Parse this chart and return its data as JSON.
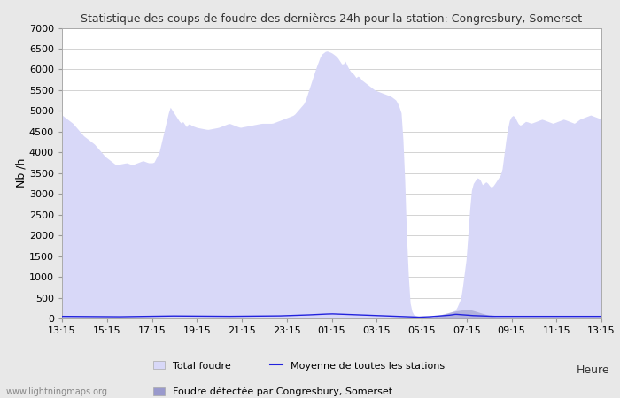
{
  "title": "Statistique des coups de foudre des dernières 24h pour la station: Congresbury, Somerset",
  "xlabel": "Heure",
  "ylabel": "Nb /h",
  "xlabels": [
    "13:15",
    "15:15",
    "17:15",
    "19:15",
    "21:15",
    "23:15",
    "01:15",
    "03:15",
    "05:15",
    "07:15",
    "09:15",
    "11:15",
    "13:15"
  ],
  "ylim": [
    0,
    7000
  ],
  "yticks": [
    0,
    500,
    1000,
    1500,
    2000,
    2500,
    3000,
    3500,
    4000,
    4500,
    5000,
    5500,
    6000,
    6500,
    7000
  ],
  "fill_color_total": "#d8d8f8",
  "fill_color_local": "#9999cc",
  "line_color_mean": "#2222dd",
  "bg_color": "#e8e8e8",
  "plot_bg": "#ffffff",
  "watermark": "www.lightningmaps.org",
  "legend_labels": [
    "Total foudre",
    "Moyenne de toutes les stations",
    "Foudre détectée par Congresbury, Somerset"
  ],
  "waypoints_total": [
    [
      0.0,
      4900
    ],
    [
      0.02,
      4700
    ],
    [
      0.04,
      4400
    ],
    [
      0.06,
      4200
    ],
    [
      0.08,
      3900
    ],
    [
      0.1,
      3700
    ],
    [
      0.12,
      3750
    ],
    [
      0.13,
      3700
    ],
    [
      0.14,
      3750
    ],
    [
      0.15,
      3800
    ],
    [
      0.16,
      3750
    ],
    [
      0.17,
      3750
    ],
    [
      0.18,
      4000
    ],
    [
      0.2,
      5100
    ],
    [
      0.21,
      4900
    ],
    [
      0.215,
      4800
    ],
    [
      0.22,
      4700
    ],
    [
      0.225,
      4750
    ],
    [
      0.23,
      4600
    ],
    [
      0.235,
      4700
    ],
    [
      0.24,
      4650
    ],
    [
      0.25,
      4600
    ],
    [
      0.27,
      4550
    ],
    [
      0.29,
      4600
    ],
    [
      0.31,
      4700
    ],
    [
      0.33,
      4600
    ],
    [
      0.35,
      4650
    ],
    [
      0.37,
      4700
    ],
    [
      0.39,
      4700
    ],
    [
      0.41,
      4800
    ],
    [
      0.43,
      4900
    ],
    [
      0.45,
      5200
    ],
    [
      0.46,
      5600
    ],
    [
      0.47,
      6000
    ],
    [
      0.48,
      6350
    ],
    [
      0.49,
      6450
    ],
    [
      0.5,
      6400
    ],
    [
      0.51,
      6300
    ],
    [
      0.52,
      6100
    ],
    [
      0.525,
      6200
    ],
    [
      0.53,
      6050
    ],
    [
      0.535,
      5950
    ],
    [
      0.54,
      5900
    ],
    [
      0.545,
      5800
    ],
    [
      0.55,
      5850
    ],
    [
      0.555,
      5750
    ],
    [
      0.56,
      5700
    ],
    [
      0.565,
      5650
    ],
    [
      0.57,
      5600
    ],
    [
      0.575,
      5550
    ],
    [
      0.58,
      5500
    ],
    [
      0.59,
      5450
    ],
    [
      0.6,
      5400
    ],
    [
      0.61,
      5350
    ],
    [
      0.615,
      5300
    ],
    [
      0.62,
      5250
    ],
    [
      0.625,
      5100
    ],
    [
      0.63,
      4900
    ],
    [
      0.635,
      3500
    ],
    [
      0.64,
      1500
    ],
    [
      0.645,
      400
    ],
    [
      0.65,
      100
    ],
    [
      0.66,
      50
    ],
    [
      0.67,
      30
    ],
    [
      0.675,
      40
    ],
    [
      0.68,
      60
    ],
    [
      0.685,
      50
    ],
    [
      0.69,
      40
    ],
    [
      0.695,
      50
    ],
    [
      0.7,
      60
    ],
    [
      0.705,
      80
    ],
    [
      0.71,
      100
    ],
    [
      0.715,
      120
    ],
    [
      0.72,
      150
    ],
    [
      0.73,
      200
    ],
    [
      0.74,
      500
    ],
    [
      0.75,
      1500
    ],
    [
      0.755,
      2500
    ],
    [
      0.76,
      3200
    ],
    [
      0.765,
      3300
    ],
    [
      0.77,
      3400
    ],
    [
      0.775,
      3350
    ],
    [
      0.78,
      3200
    ],
    [
      0.785,
      3300
    ],
    [
      0.79,
      3250
    ],
    [
      0.795,
      3150
    ],
    [
      0.8,
      3200
    ],
    [
      0.81,
      3400
    ],
    [
      0.815,
      3500
    ],
    [
      0.82,
      4000
    ],
    [
      0.825,
      4500
    ],
    [
      0.83,
      4800
    ],
    [
      0.835,
      4900
    ],
    [
      0.84,
      4850
    ],
    [
      0.845,
      4700
    ],
    [
      0.85,
      4650
    ],
    [
      0.855,
      4700
    ],
    [
      0.86,
      4750
    ],
    [
      0.87,
      4700
    ],
    [
      0.88,
      4750
    ],
    [
      0.89,
      4800
    ],
    [
      0.9,
      4750
    ],
    [
      0.91,
      4700
    ],
    [
      0.92,
      4750
    ],
    [
      0.93,
      4800
    ],
    [
      0.94,
      4750
    ],
    [
      0.95,
      4700
    ],
    [
      0.96,
      4800
    ],
    [
      0.97,
      4850
    ],
    [
      0.98,
      4900
    ],
    [
      0.99,
      4850
    ],
    [
      1.0,
      4800
    ]
  ],
  "waypoints_local": [
    [
      0.0,
      0
    ],
    [
      0.62,
      0
    ],
    [
      0.68,
      0
    ],
    [
      0.7,
      80
    ],
    [
      0.71,
      120
    ],
    [
      0.72,
      150
    ],
    [
      0.73,
      180
    ],
    [
      0.74,
      200
    ],
    [
      0.75,
      220
    ],
    [
      0.76,
      200
    ],
    [
      0.77,
      160
    ],
    [
      0.78,
      120
    ],
    [
      0.79,
      80
    ],
    [
      0.8,
      40
    ],
    [
      0.81,
      20
    ],
    [
      0.82,
      0
    ],
    [
      1.0,
      0
    ]
  ],
  "waypoints_mean": [
    [
      0.0,
      50
    ],
    [
      0.1,
      40
    ],
    [
      0.2,
      60
    ],
    [
      0.3,
      50
    ],
    [
      0.4,
      60
    ],
    [
      0.45,
      80
    ],
    [
      0.48,
      100
    ],
    [
      0.5,
      110
    ],
    [
      0.52,
      100
    ],
    [
      0.54,
      90
    ],
    [
      0.56,
      80
    ],
    [
      0.58,
      70
    ],
    [
      0.6,
      60
    ],
    [
      0.62,
      50
    ],
    [
      0.64,
      40
    ],
    [
      0.66,
      30
    ],
    [
      0.68,
      40
    ],
    [
      0.7,
      60
    ],
    [
      0.72,
      80
    ],
    [
      0.73,
      100
    ],
    [
      0.74,
      90
    ],
    [
      0.75,
      80
    ],
    [
      0.76,
      70
    ],
    [
      0.78,
      60
    ],
    [
      0.8,
      50
    ],
    [
      0.85,
      50
    ],
    [
      0.9,
      50
    ],
    [
      0.95,
      50
    ],
    [
      1.0,
      50
    ]
  ]
}
